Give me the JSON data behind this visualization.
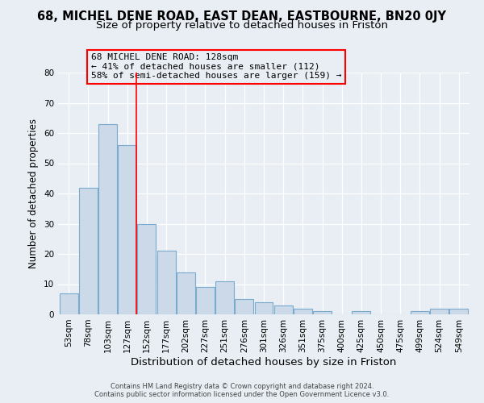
{
  "title": "68, MICHEL DENE ROAD, EAST DEAN, EASTBOURNE, BN20 0JY",
  "subtitle": "Size of property relative to detached houses in Friston",
  "xlabel": "Distribution of detached houses by size in Friston",
  "ylabel": "Number of detached properties",
  "categories": [
    "53sqm",
    "78sqm",
    "103sqm",
    "127sqm",
    "152sqm",
    "177sqm",
    "202sqm",
    "227sqm",
    "251sqm",
    "276sqm",
    "301sqm",
    "326sqm",
    "351sqm",
    "375sqm",
    "400sqm",
    "425sqm",
    "450sqm",
    "475sqm",
    "499sqm",
    "524sqm",
    "549sqm"
  ],
  "values": [
    7,
    42,
    63,
    56,
    30,
    21,
    14,
    9,
    11,
    5,
    4,
    3,
    2,
    1,
    0,
    1,
    0,
    0,
    1,
    2,
    2
  ],
  "bar_color": "#ccd9e8",
  "bar_edge_color": "#7aabcf",
  "red_line_index": 3,
  "annotation_line1": "68 MICHEL DENE ROAD: 128sqm",
  "annotation_line2": "← 41% of detached houses are smaller (112)",
  "annotation_line3": "58% of semi-detached houses are larger (159) →",
  "footer_line1": "Contains HM Land Registry data © Crown copyright and database right 2024.",
  "footer_line2": "Contains public sector information licensed under the Open Government Licence v3.0.",
  "ylim": [
    0,
    80
  ],
  "yticks": [
    0,
    10,
    20,
    30,
    40,
    50,
    60,
    70,
    80
  ],
  "background_color": "#e8eef4",
  "plot_bg_color": "#e8eef4",
  "title_fontsize": 10.5,
  "subtitle_fontsize": 9.5,
  "xlabel_fontsize": 9.5,
  "ylabel_fontsize": 8.5,
  "tick_fontsize": 7.5,
  "annotation_fontsize": 8.0,
  "footer_fontsize": 6.0
}
